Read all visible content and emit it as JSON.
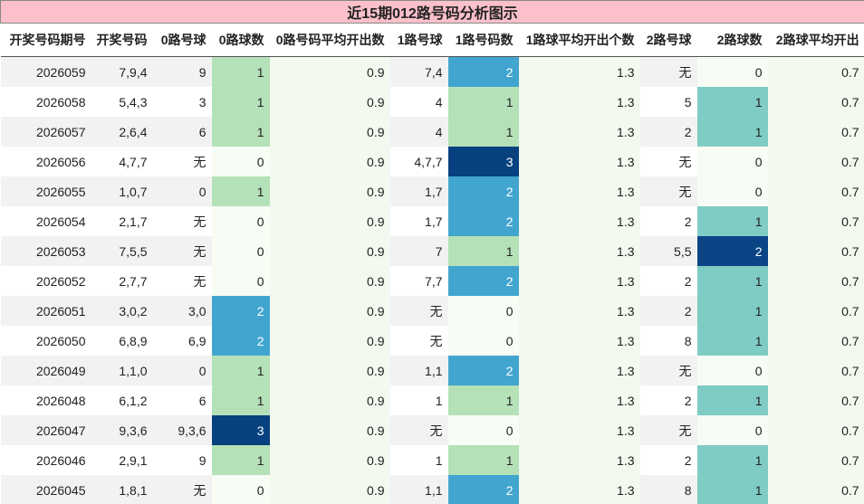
{
  "title": "近15期012路号码分析图示",
  "headers": [
    "开奖号码期号",
    "开奖号码",
    "0路号球",
    "0路球数",
    "0路号码平均开出数",
    "1路号球",
    "1路号码数",
    "1路球平均开出个数",
    "2路号球",
    "2路球数",
    "2路球平均开出"
  ],
  "rows": [
    [
      "2026059",
      "7,9,4",
      "9",
      "1",
      "0.9",
      "7,4",
      "2",
      "1.3",
      "无",
      "0",
      "0.7"
    ],
    [
      "2026058",
      "5,4,3",
      "3",
      "1",
      "0.9",
      "4",
      "1",
      "1.3",
      "5",
      "1",
      "0.7"
    ],
    [
      "2026057",
      "2,6,4",
      "6",
      "1",
      "0.9",
      "4",
      "1",
      "1.3",
      "2",
      "1",
      "0.7"
    ],
    [
      "2026056",
      "4,7,7",
      "无",
      "0",
      "0.9",
      "4,7,7",
      "3",
      "1.3",
      "无",
      "0",
      "0.7"
    ],
    [
      "2026055",
      "1,0,7",
      "0",
      "1",
      "0.9",
      "1,7",
      "2",
      "1.3",
      "无",
      "0",
      "0.7"
    ],
    [
      "2026054",
      "2,1,7",
      "无",
      "0",
      "0.9",
      "1,7",
      "2",
      "1.3",
      "2",
      "1",
      "0.7"
    ],
    [
      "2026053",
      "7,5,5",
      "无",
      "0",
      "0.9",
      "7",
      "1",
      "1.3",
      "5,5",
      "2",
      "0.7"
    ],
    [
      "2026052",
      "2,7,7",
      "无",
      "0",
      "0.9",
      "7,7",
      "2",
      "1.3",
      "2",
      "1",
      "0.7"
    ],
    [
      "2026051",
      "3,0,2",
      "3,0",
      "2",
      "0.9",
      "无",
      "0",
      "1.3",
      "2",
      "1",
      "0.7"
    ],
    [
      "2026050",
      "6,8,9",
      "6,9",
      "2",
      "0.9",
      "无",
      "0",
      "1.3",
      "8",
      "1",
      "0.7"
    ],
    [
      "2026049",
      "1,1,0",
      "0",
      "1",
      "0.9",
      "1,1",
      "2",
      "1.3",
      "无",
      "0",
      "0.7"
    ],
    [
      "2026048",
      "6,1,2",
      "6",
      "1",
      "0.9",
      "1",
      "1",
      "1.3",
      "2",
      "1",
      "0.7"
    ],
    [
      "2026047",
      "9,3,6",
      "9,3,6",
      "3",
      "0.9",
      "无",
      "0",
      "1.3",
      "无",
      "0",
      "0.7"
    ],
    [
      "2026046",
      "2,9,1",
      "9",
      "1",
      "0.9",
      "1",
      "1",
      "1.3",
      "2",
      "1",
      "0.7"
    ],
    [
      "2026045",
      "1,8,1",
      "无",
      "0",
      "0.9",
      "1,1",
      "2",
      "1.3",
      "8",
      "1",
      "0.7"
    ]
  ]
}
